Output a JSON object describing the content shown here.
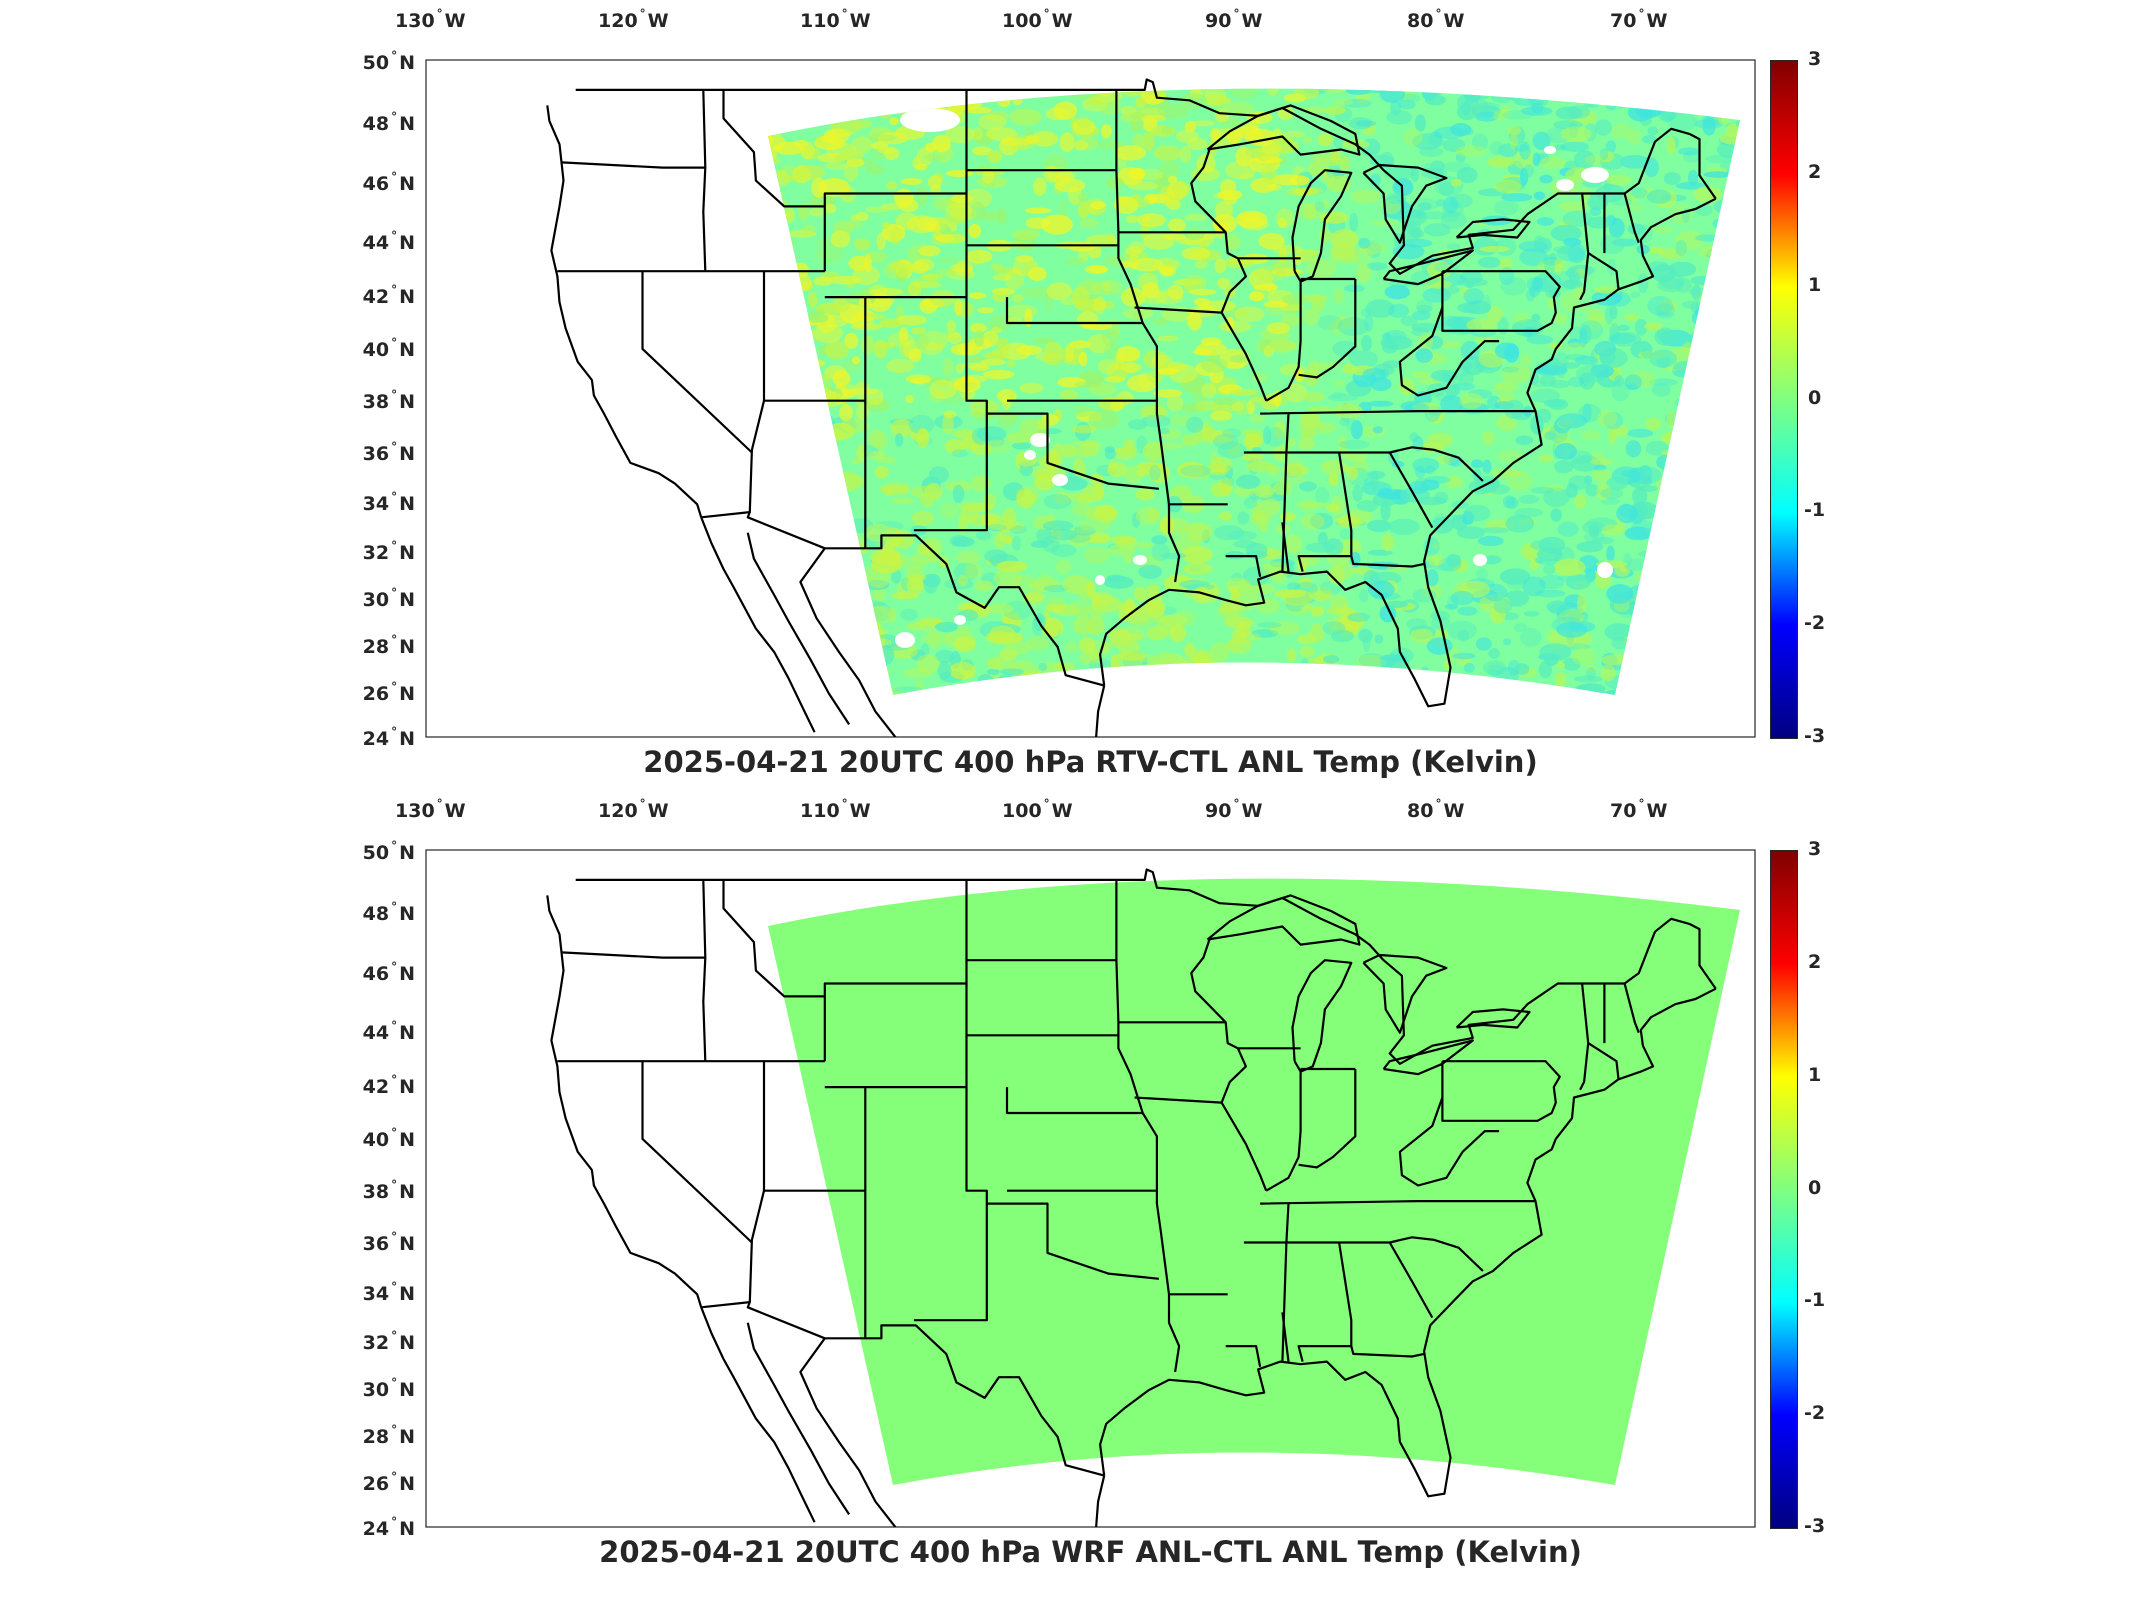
{
  "lon_labels": [
    {
      "value": "130",
      "hemi": "W"
    },
    {
      "value": "120",
      "hemi": "W"
    },
    {
      "value": "110",
      "hemi": "W"
    },
    {
      "value": "100",
      "hemi": "W"
    },
    {
      "value": "90",
      "hemi": "W"
    },
    {
      "value": "80",
      "hemi": "W"
    },
    {
      "value": "70",
      "hemi": "W"
    }
  ],
  "lat_labels": [
    {
      "value": "50",
      "hemi": "N"
    },
    {
      "value": "48",
      "hemi": "N"
    },
    {
      "value": "46",
      "hemi": "N"
    },
    {
      "value": "44",
      "hemi": "N"
    },
    {
      "value": "42",
      "hemi": "N"
    },
    {
      "value": "40",
      "hemi": "N"
    },
    {
      "value": "38",
      "hemi": "N"
    },
    {
      "value": "36",
      "hemi": "N"
    },
    {
      "value": "34",
      "hemi": "N"
    },
    {
      "value": "32",
      "hemi": "N"
    },
    {
      "value": "30",
      "hemi": "N"
    },
    {
      "value": "28",
      "hemi": "N"
    },
    {
      "value": "26",
      "hemi": "N"
    },
    {
      "value": "24",
      "hemi": "N"
    }
  ],
  "colorbar": {
    "ticks": [
      "3",
      "2",
      "1",
      "0",
      "-1",
      "-2",
      "-3"
    ],
    "colormap": "jet",
    "colors": [
      "#000080",
      "#0000ff",
      "#00ffff",
      "#80ff80",
      "#ffff00",
      "#ff0000",
      "#800000"
    ]
  },
  "panels": [
    {
      "title": "2025-04-21 20UTC 400 hPa RTV-CTL ANL Temp (Kelvin)",
      "field": "noisy",
      "fill_base": "#7fffa0",
      "fill_tints": [
        "#9ff56a",
        "#c8f545",
        "#eef62a",
        "#55ecc0",
        "#3ee4e0",
        "#b5f75a"
      ]
    },
    {
      "title": "2025-04-21 20UTC 400 hPa WRF ANL-CTL ANL Temp (Kelvin)",
      "field": "uniform",
      "fill_base": "#85ff7a",
      "fill_tints": []
    }
  ]
}
